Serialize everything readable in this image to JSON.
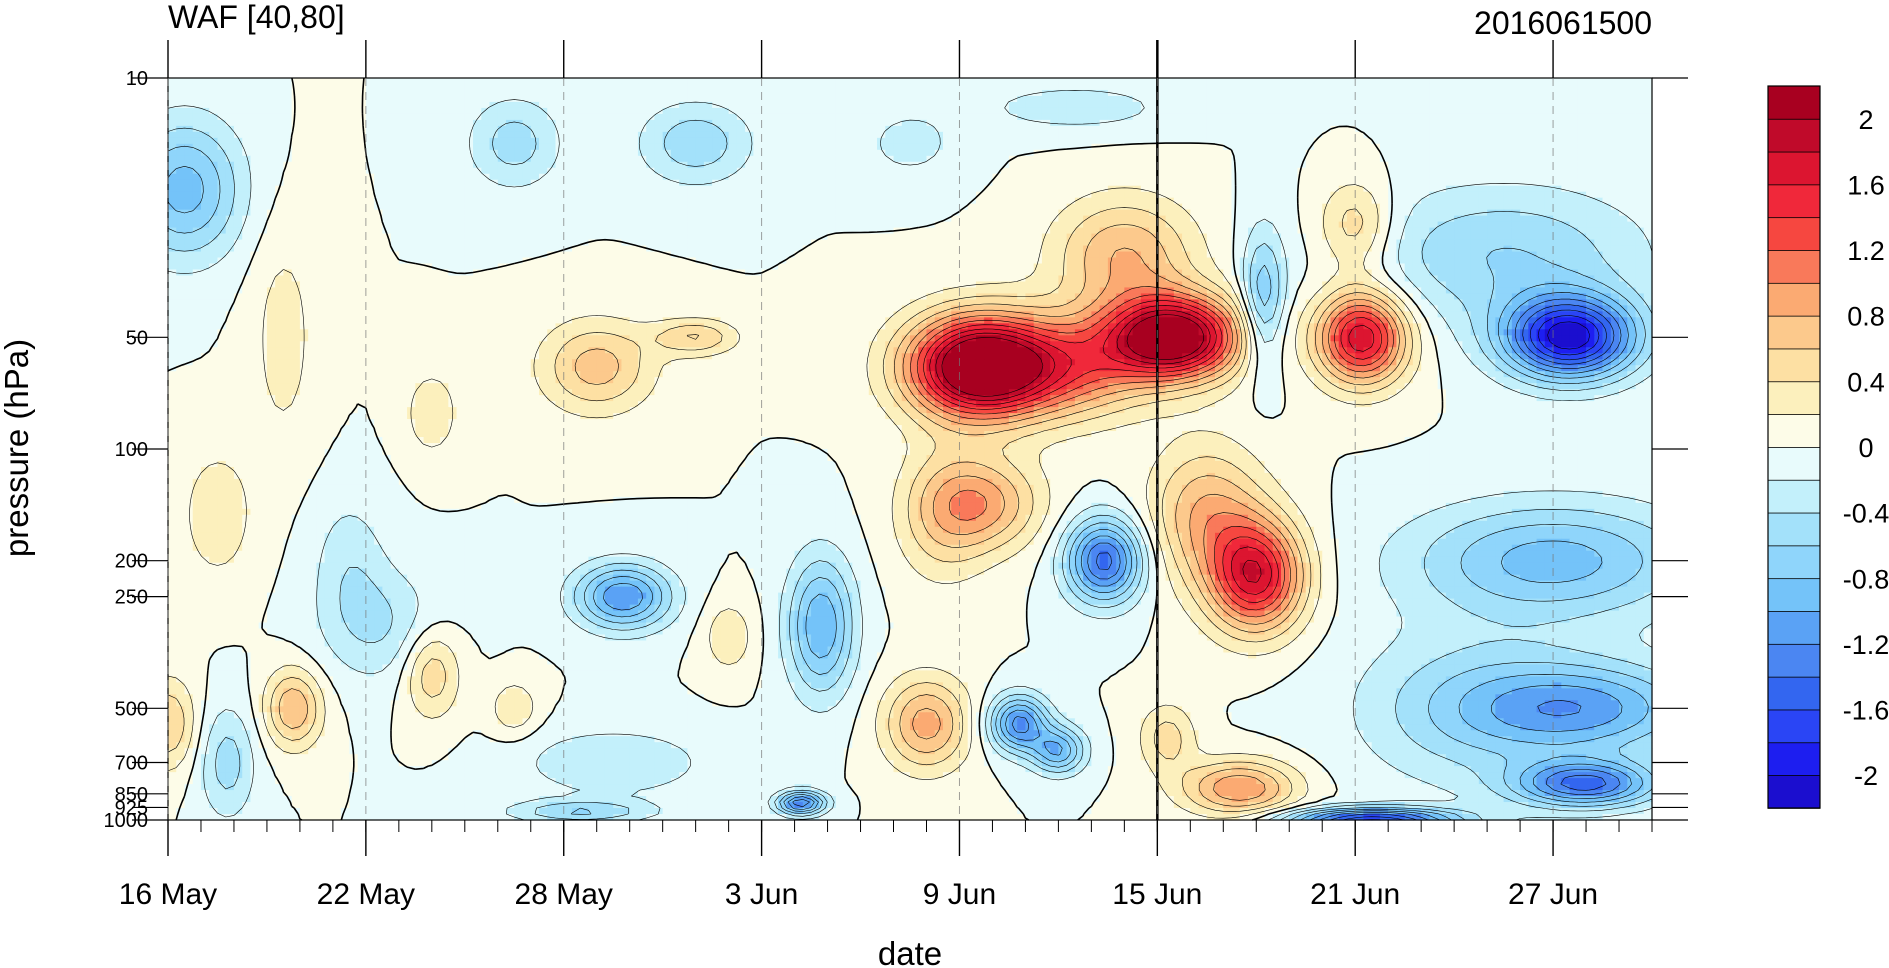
{
  "chart_data": {
    "type": "heatmap",
    "title": "WAF [40,80]",
    "timestamp": "2016061500",
    "xlabel": "date",
    "ylabel": "pressure (hPa)",
    "x_ticks": [
      {
        "day": 0,
        "label": "16 May"
      },
      {
        "day": 6,
        "label": "22 May"
      },
      {
        "day": 12,
        "label": "28 May"
      },
      {
        "day": 18,
        "label": "3 Jun"
      },
      {
        "day": 24,
        "label": "9 Jun"
      },
      {
        "day": 30,
        "label": "15 Jun"
      },
      {
        "day": 36,
        "label": "21 Jun"
      },
      {
        "day": 42,
        "label": "27 Jun"
      }
    ],
    "x_range_days": [
      0,
      45
    ],
    "x_minor_tick_step_days": 1,
    "current_day_marker": 30,
    "y_scale": "log",
    "y_range": [
      1000,
      10
    ],
    "y_ticks": [
      {
        "value": 10,
        "label": "10"
      },
      {
        "value": 50,
        "label": "50"
      },
      {
        "value": 100,
        "label": "100"
      },
      {
        "value": 200,
        "label": "200"
      },
      {
        "value": 250,
        "label": "250"
      },
      {
        "value": 500,
        "label": "500"
      },
      {
        "value": 700,
        "label": "700"
      },
      {
        "value": 850,
        "label": "850"
      },
      {
        "value": 925,
        "label": "925"
      },
      {
        "value": 1000,
        "label": "1000"
      }
    ],
    "pressure_levels": [
      10,
      20,
      30,
      50,
      70,
      100,
      150,
      200,
      250,
      300,
      400,
      500,
      700,
      850,
      925,
      1000
    ],
    "colorbar": {
      "levels": [
        -2.2,
        -2.0,
        -1.8,
        -1.6,
        -1.4,
        -1.2,
        -1.0,
        -0.8,
        -0.6,
        -0.4,
        -0.2,
        0,
        0.2,
        0.4,
        0.6,
        0.8,
        1.0,
        1.2,
        1.4,
        1.6,
        1.8,
        2.0,
        2.2
      ],
      "colors": [
        "#1b0ecf",
        "#1d1ef0",
        "#2a45f5",
        "#3366f0",
        "#4b86f2",
        "#5aa2f5",
        "#74c3f9",
        "#8fd5fb",
        "#a3e1fa",
        "#c3f0fb",
        "#e8fbfc",
        "#fdfce8",
        "#fcf0bd",
        "#fde0a3",
        "#fcc98c",
        "#fbaa72",
        "#f9795a",
        "#f64740",
        "#f0283a",
        "#dc1530",
        "#c00a2a",
        "#a80020"
      ],
      "tick_labels": [
        {
          "value": 2.0,
          "label": "2"
        },
        {
          "value": 1.6,
          "label": "1.6"
        },
        {
          "value": 1.2,
          "label": "1.2"
        },
        {
          "value": 0.8,
          "label": "0.8"
        },
        {
          "value": 0.4,
          "label": "0.4"
        },
        {
          "value": 0,
          "label": "0"
        },
        {
          "value": -0.4,
          "label": "-0.4"
        },
        {
          "value": -0.8,
          "label": "-0.8"
        },
        {
          "value": -1.2,
          "label": "-1.2"
        },
        {
          "value": -1.6,
          "label": "-1.6"
        },
        {
          "value": -2.0,
          "label": "-2"
        }
      ]
    },
    "features": [
      {
        "day": 24.6,
        "p": 60,
        "amp": 2.6,
        "sx": 1.5,
        "sy": 0.22
      },
      {
        "day": 24.8,
        "p": 140,
        "amp": 0.8,
        "sx": 1.2,
        "sy": 0.2
      },
      {
        "day": 30.5,
        "p": 50,
        "amp": 2.4,
        "sx": 1.4,
        "sy": 0.18
      },
      {
        "day": 27.5,
        "p": 60,
        "amp": 1.0,
        "sx": 1.6,
        "sy": 0.22
      },
      {
        "day": 29.0,
        "p": 30,
        "amp": 0.8,
        "sx": 1.5,
        "sy": 0.25
      },
      {
        "day": 33.0,
        "p": 220,
        "amp": 1.7,
        "sx": 1.0,
        "sy": 0.24
      },
      {
        "day": 31.5,
        "p": 150,
        "amp": 0.8,
        "sx": 1.2,
        "sy": 0.3
      },
      {
        "day": 36.2,
        "p": 50,
        "amp": 1.8,
        "sx": 0.95,
        "sy": 0.2
      },
      {
        "day": 36.0,
        "p": 25,
        "amp": 0.6,
        "sx": 0.8,
        "sy": 0.2
      },
      {
        "day": 23.0,
        "p": 550,
        "amp": 0.9,
        "sx": 0.9,
        "sy": 0.2
      },
      {
        "day": 23.5,
        "p": 150,
        "amp": 0.5,
        "sx": 1.0,
        "sy": 0.3
      },
      {
        "day": 32.5,
        "p": 820,
        "amp": 1.0,
        "sx": 1.2,
        "sy": 0.12
      },
      {
        "day": 30.3,
        "p": 600,
        "amp": 0.5,
        "sx": 0.6,
        "sy": 0.15
      },
      {
        "day": 13.0,
        "p": 60,
        "amp": 0.7,
        "sx": 1.2,
        "sy": 0.2
      },
      {
        "day": 16.0,
        "p": 50,
        "amp": 0.6,
        "sx": 0.9,
        "sy": 0.08
      },
      {
        "day": 8.0,
        "p": 400,
        "amp": 0.6,
        "sx": 0.6,
        "sy": 0.2
      },
      {
        "day": 3.8,
        "p": 500,
        "amp": 0.8,
        "sx": 0.6,
        "sy": 0.17
      },
      {
        "day": 3.5,
        "p": 50,
        "amp": 0.3,
        "sx": 0.7,
        "sy": 0.5
      },
      {
        "day": 1.5,
        "p": 150,
        "amp": 0.35,
        "sx": 0.8,
        "sy": 0.3
      },
      {
        "day": 0.0,
        "p": 550,
        "amp": 0.6,
        "sx": 0.6,
        "sy": 0.2
      },
      {
        "day": 10.5,
        "p": 500,
        "amp": 0.4,
        "sx": 0.5,
        "sy": 0.12
      },
      {
        "day": 17.0,
        "p": 320,
        "amp": 0.4,
        "sx": 0.5,
        "sy": 0.15
      },
      {
        "day": 8.0,
        "p": 80,
        "amp": 0.35,
        "sx": 0.6,
        "sy": 0.2
      },
      {
        "day": 42.5,
        "p": 50,
        "amp": -2.1,
        "sx": 1.4,
        "sy": 0.18
      },
      {
        "day": 43.0,
        "p": 800,
        "amp": -1.4,
        "sx": 1.5,
        "sy": 0.1
      },
      {
        "day": 36.5,
        "p": 1000,
        "amp": -1.8,
        "sx": 1.8,
        "sy": 0.05
      },
      {
        "day": 42.0,
        "p": 200,
        "amp": -0.9,
        "sx": 3.0,
        "sy": 0.25
      },
      {
        "day": 43.0,
        "p": 500,
        "amp": -1.0,
        "sx": 2.5,
        "sy": 0.2
      },
      {
        "day": 39.5,
        "p": 500,
        "amp": -0.5,
        "sx": 2.5,
        "sy": 0.35
      },
      {
        "day": 40.5,
        "p": 30,
        "amp": -0.6,
        "sx": 3.0,
        "sy": 0.3
      },
      {
        "day": 28.4,
        "p": 200,
        "amp": -1.5,
        "sx": 0.8,
        "sy": 0.18
      },
      {
        "day": 25.8,
        "p": 550,
        "amp": -1.3,
        "sx": 0.6,
        "sy": 0.12
      },
      {
        "day": 27.0,
        "p": 650,
        "amp": -1.0,
        "sx": 0.55,
        "sy": 0.1
      },
      {
        "day": 19.2,
        "p": 900,
        "amp": -1.4,
        "sx": 0.5,
        "sy": 0.05
      },
      {
        "day": 19.8,
        "p": 300,
        "amp": -1.0,
        "sx": 0.7,
        "sy": 0.3
      },
      {
        "day": 13.8,
        "p": 250,
        "amp": -1.2,
        "sx": 1.0,
        "sy": 0.14
      },
      {
        "day": 13.5,
        "p": 700,
        "amp": -0.4,
        "sx": 2.0,
        "sy": 0.15
      },
      {
        "day": 12.5,
        "p": 950,
        "amp": -0.6,
        "sx": 1.5,
        "sy": 0.05
      },
      {
        "day": 6.5,
        "p": 300,
        "amp": -0.4,
        "sx": 1.3,
        "sy": 0.25
      },
      {
        "day": 0.5,
        "p": 20,
        "amp": -0.9,
        "sx": 1.2,
        "sy": 0.3
      },
      {
        "day": 10.5,
        "p": 15,
        "amp": -0.5,
        "sx": 1.0,
        "sy": 0.2
      },
      {
        "day": 16.0,
        "p": 15,
        "amp": -0.55,
        "sx": 1.2,
        "sy": 0.18
      },
      {
        "day": 22.5,
        "p": 15,
        "amp": -0.3,
        "sx": 1.0,
        "sy": 0.15
      },
      {
        "day": 27.5,
        "p": 12,
        "amp": -0.35,
        "sx": 2.0,
        "sy": 0.1
      },
      {
        "day": 33.2,
        "p": 40,
        "amp": -0.8,
        "sx": 0.45,
        "sy": 0.3
      },
      {
        "day": 1.8,
        "p": 700,
        "amp": -0.5,
        "sx": 0.6,
        "sy": 0.25
      },
      {
        "day": 5.5,
        "p": 200,
        "amp": -0.3,
        "sx": 0.8,
        "sy": 0.3
      }
    ]
  }
}
